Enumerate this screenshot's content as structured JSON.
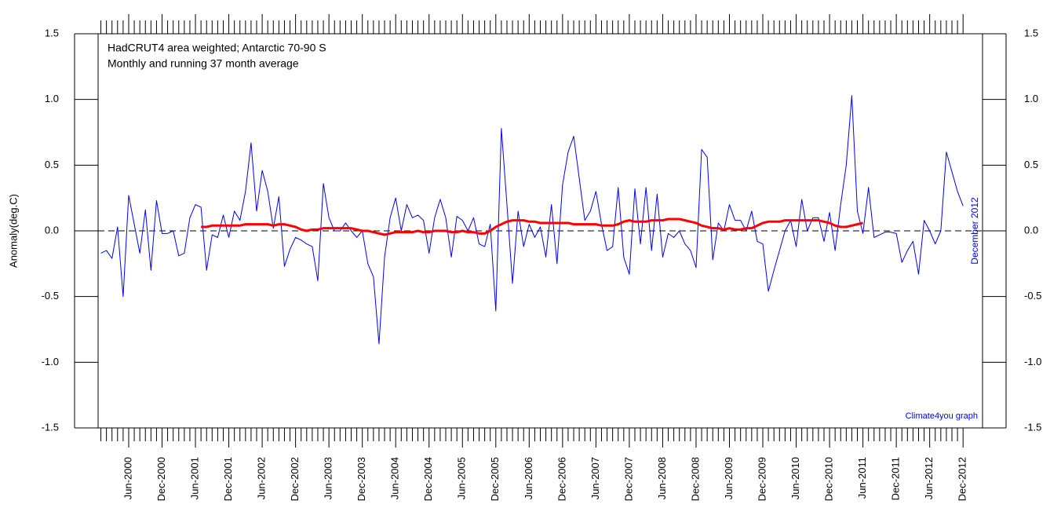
{
  "chart_data": {
    "type": "line",
    "title": "HadCRUT4 area weighted; Antarctic 70-90 S",
    "subtitle": "Monthly and running 37 month average",
    "ylabel": "Anomaly(deg.C)",
    "annotations": [
      "December 2012",
      "Climate4you graph"
    ],
    "categories": [
      null,
      null,
      null,
      null,
      null,
      "Jun-2000",
      null,
      null,
      null,
      null,
      null,
      "Dec-2000",
      null,
      null,
      null,
      null,
      null,
      "Jun-2001",
      null,
      null,
      null,
      null,
      null,
      "Dec-2001",
      null,
      null,
      null,
      null,
      null,
      "Jun-2002",
      null,
      null,
      null,
      null,
      null,
      "Dec-2002",
      null,
      null,
      null,
      null,
      null,
      "Jun-2003",
      null,
      null,
      null,
      null,
      null,
      "Dec-2003",
      null,
      null,
      null,
      null,
      null,
      "Jun-2004",
      null,
      null,
      null,
      null,
      null,
      "Dec-2004",
      null,
      null,
      null,
      null,
      null,
      "Jun-2005",
      null,
      null,
      null,
      null,
      null,
      "Dec-2005",
      null,
      null,
      null,
      null,
      null,
      "Jun-2006",
      null,
      null,
      null,
      null,
      null,
      "Dec-2006",
      null,
      null,
      null,
      null,
      null,
      "Jun-2007",
      null,
      null,
      null,
      null,
      null,
      "Dec-2007",
      null,
      null,
      null,
      null,
      null,
      "Jun-2008",
      null,
      null,
      null,
      null,
      null,
      "Dec-2008",
      null,
      null,
      null,
      null,
      null,
      "Jun-2009",
      null,
      null,
      null,
      null,
      null,
      "Dec-2009",
      null,
      null,
      null,
      null,
      null,
      "Jun-2010",
      null,
      null,
      null,
      null,
      null,
      "Dec-2010",
      null,
      null,
      null,
      null,
      null,
      "Jun-2011",
      null,
      null,
      null,
      null,
      null,
      "Dec-2011",
      null,
      null,
      null,
      null,
      null,
      "Jun-2012",
      null,
      null,
      null,
      null,
      null,
      "Dec-2012"
    ],
    "series": [
      {
        "name": "Monthly",
        "color": "#0000ff",
        "width": 1,
        "values": [
          -0.17,
          -0.15,
          -0.21,
          0.03,
          -0.5,
          0.27,
          0.05,
          -0.17,
          0.16,
          -0.3,
          0.23,
          -0.02,
          -0.02,
          0.0,
          -0.19,
          -0.17,
          0.1,
          0.2,
          0.18,
          -0.3,
          -0.03,
          -0.05,
          0.12,
          -0.05,
          0.15,
          0.08,
          0.3,
          0.67,
          0.15,
          0.46,
          0.3,
          0.02,
          0.26,
          -0.27,
          -0.14,
          -0.05,
          -0.07,
          -0.1,
          -0.12,
          -0.38,
          0.36,
          0.1,
          0.0,
          0.0,
          0.06,
          0.0,
          -0.05,
          0.0,
          -0.25,
          -0.35,
          -0.86,
          -0.2,
          0.1,
          0.25,
          0.0,
          0.2,
          0.1,
          0.12,
          0.08,
          -0.17,
          0.1,
          0.24,
          0.1,
          -0.2,
          0.11,
          0.08,
          0.0,
          0.1,
          -0.1,
          -0.12,
          0.05,
          -0.61,
          0.78,
          0.2,
          -0.4,
          0.15,
          -0.12,
          0.05,
          -0.05,
          0.03,
          -0.2,
          0.2,
          -0.25,
          0.35,
          0.6,
          0.72,
          0.4,
          0.08,
          0.15,
          0.3,
          0.05,
          -0.15,
          -0.12,
          0.33,
          -0.2,
          -0.33,
          0.32,
          -0.1,
          0.33,
          -0.15,
          0.28,
          -0.2,
          -0.02,
          -0.05,
          0.0,
          -0.1,
          -0.15,
          -0.28,
          0.62,
          0.56,
          -0.22,
          0.06,
          0.0,
          0.2,
          0.08,
          0.08,
          0.0,
          0.15,
          -0.08,
          -0.1,
          -0.46,
          -0.3,
          -0.15,
          0.0,
          0.08,
          -0.12,
          0.24,
          0.0,
          0.1,
          0.1,
          -0.08,
          0.14,
          -0.15,
          0.2,
          0.5,
          1.03,
          0.15,
          -0.02,
          0.33,
          -0.05,
          -0.03,
          -0.01,
          -0.01,
          -0.02,
          -0.24,
          -0.15,
          -0.08,
          -0.33,
          0.08,
          0.0,
          -0.1,
          0.0,
          0.6,
          0.45,
          0.3,
          0.19
        ]
      },
      {
        "name": "Running 37 month average",
        "color": "#ff0000",
        "width": 3,
        "values": [
          null,
          null,
          null,
          null,
          null,
          null,
          null,
          null,
          null,
          null,
          null,
          null,
          null,
          null,
          null,
          null,
          null,
          null,
          0.03,
          0.03,
          0.04,
          0.04,
          0.04,
          0.04,
          0.04,
          0.04,
          0.05,
          0.05,
          0.05,
          0.05,
          0.05,
          0.04,
          0.05,
          0.05,
          0.04,
          0.03,
          0.01,
          0.0,
          0.01,
          0.01,
          0.02,
          0.02,
          0.02,
          0.02,
          0.02,
          0.02,
          0.01,
          0.0,
          0.0,
          -0.01,
          -0.02,
          -0.03,
          -0.02,
          -0.01,
          -0.01,
          -0.01,
          -0.01,
          0.0,
          -0.01,
          -0.01,
          0.0,
          0.0,
          0.0,
          -0.01,
          -0.01,
          0.0,
          -0.01,
          -0.01,
          -0.02,
          -0.02,
          0.0,
          0.03,
          0.05,
          0.07,
          0.08,
          0.08,
          0.08,
          0.07,
          0.07,
          0.06,
          0.06,
          0.06,
          0.06,
          0.06,
          0.06,
          0.05,
          0.05,
          0.05,
          0.05,
          0.05,
          0.04,
          0.04,
          0.04,
          0.05,
          0.07,
          0.08,
          0.07,
          0.07,
          0.07,
          0.08,
          0.08,
          0.08,
          0.09,
          0.09,
          0.09,
          0.08,
          0.07,
          0.06,
          0.04,
          0.03,
          0.02,
          0.02,
          0.01,
          0.02,
          0.01,
          0.01,
          0.02,
          0.02,
          0.04,
          0.06,
          0.07,
          0.07,
          0.07,
          0.08,
          0.08,
          0.08,
          0.08,
          0.08,
          0.08,
          0.08,
          0.07,
          0.06,
          0.04,
          0.03,
          0.03,
          0.04,
          0.05,
          0.06,
          null,
          null,
          null,
          null,
          null,
          null,
          null,
          null,
          null,
          null,
          null,
          null,
          null,
          null,
          null,
          null,
          null,
          null
        ]
      }
    ],
    "ylim": [
      -1.5,
      1.5
    ],
    "yticks": [
      -1.5,
      {
        "value": -1,
        "label": "-1.0"
      },
      -0.5,
      {
        "value": 0,
        "label": "0.0"
      },
      0.5,
      {
        "value": 1,
        "label": "1.0"
      },
      1.5
    ],
    "zero_line": true
  }
}
